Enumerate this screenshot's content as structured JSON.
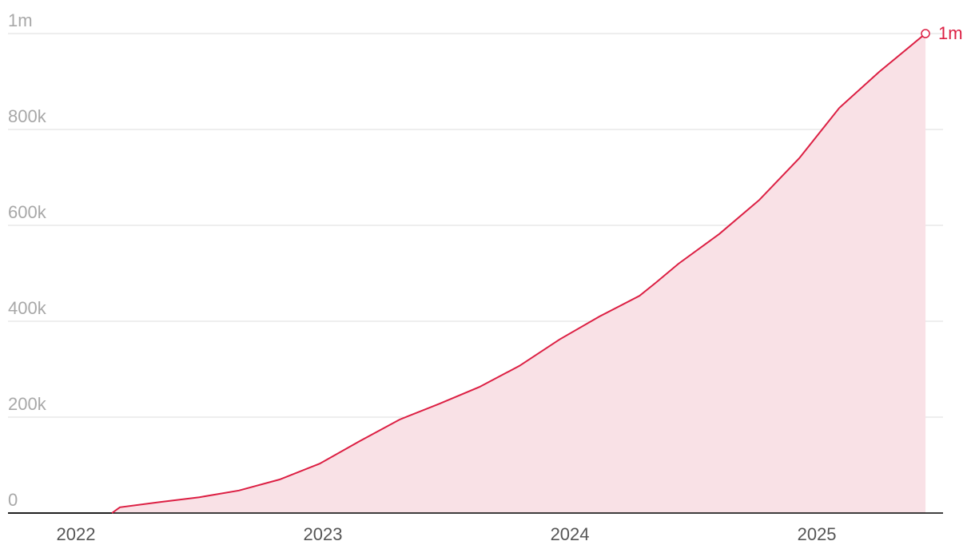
{
  "chart_data": {
    "type": "area",
    "x": [
      2022.146,
      2022.178,
      2022.34,
      2022.5,
      2022.66,
      2022.825,
      2022.987,
      2023.149,
      2023.311,
      2023.472,
      2023.634,
      2023.796,
      2023.958,
      2024.12,
      2024.282,
      2024.347,
      2024.44,
      2024.605,
      2024.767,
      2024.929,
      2025.091,
      2025.252,
      2025.44
    ],
    "values": [
      0,
      12000,
      23000,
      33000,
      47000,
      70000,
      103000,
      150000,
      195000,
      228000,
      263000,
      307000,
      362000,
      410000,
      453000,
      480000,
      520000,
      582000,
      653000,
      740000,
      845000,
      920000,
      1000000
    ],
    "end_label": "1m",
    "color": "#dc1f43",
    "fill": "#f9e1e6",
    "xlim": [
      2021.725,
      2025.511
    ],
    "xticks": [
      2022,
      2023,
      2024,
      2025
    ],
    "ylim": [
      0,
      1000000
    ],
    "yticks": [
      0,
      {
        "value": 200000,
        "label": "200k"
      },
      {
        "value": 400000,
        "label": "400k"
      },
      {
        "value": 600000,
        "label": "600k"
      },
      {
        "value": 800000,
        "label": "800k"
      },
      {
        "value": 1000000,
        "label": "1m"
      }
    ],
    "grid": true
  }
}
